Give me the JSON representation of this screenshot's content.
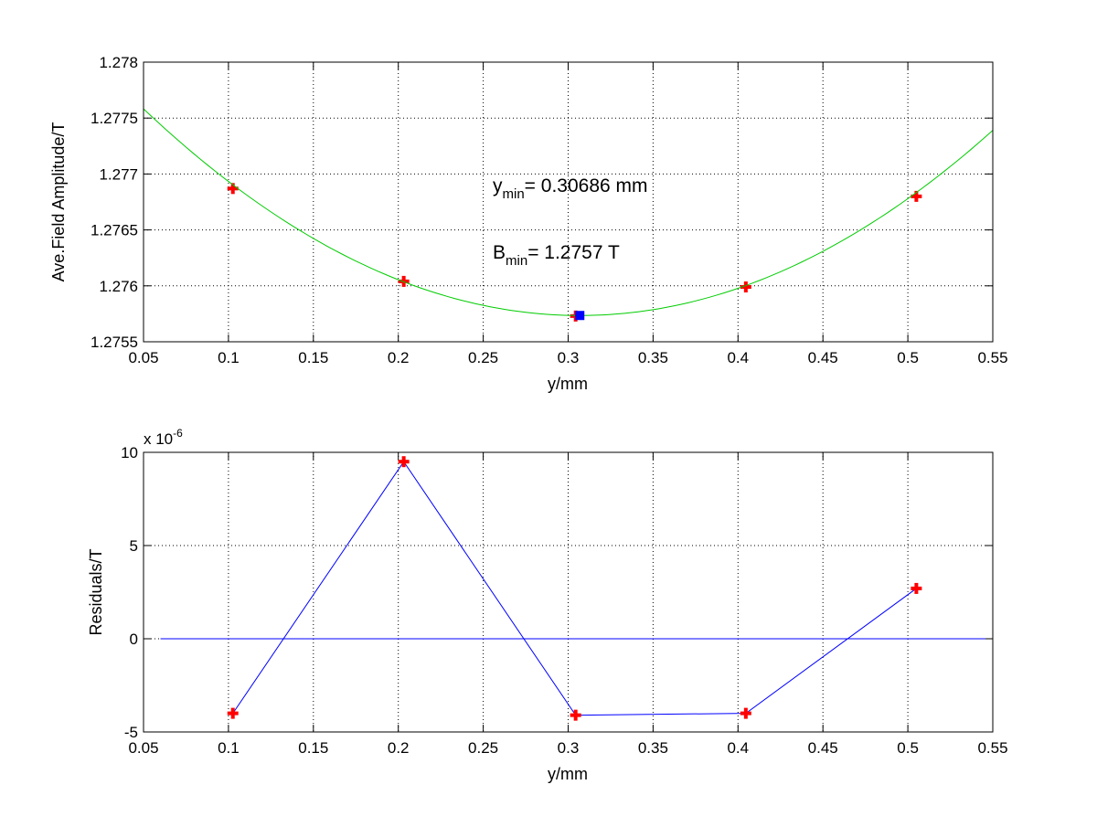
{
  "chart_data": [
    {
      "type": "scatter",
      "xlabel": "y/mm",
      "ylabel": "Ave.Field Amplitude/T",
      "xlim": [
        0.05,
        0.55
      ],
      "ylim": [
        1.2755,
        1.278
      ],
      "xticks": [
        "0.05",
        "0.1",
        "0.15",
        "0.2",
        "0.25",
        "0.3",
        "0.35",
        "0.4",
        "0.45",
        "0.5",
        "0.55"
      ],
      "yticks": [
        "1.2755",
        "1.276",
        "1.2765",
        "1.277",
        "1.2775",
        "1.278"
      ],
      "grid": true,
      "series": [
        {
          "role": "measured points",
          "color": "#ff0000",
          "marker": "plus",
          "x": [
            0.1026,
            0.2032,
            0.3044,
            0.4046,
            0.505
          ],
          "y": [
            1.27687,
            1.27604,
            1.27573,
            1.27599,
            1.2768
          ]
        },
        {
          "role": "parabolic fit",
          "color": "#00cc00",
          "marker": "none",
          "fit": {
            "vertex_x": 0.30686,
            "vertex_y": 1.275735,
            "curvature": 0.028
          },
          "x_range": [
            0.05,
            0.55
          ]
        },
        {
          "role": "minimum",
          "color": "#0000ff",
          "marker": "square",
          "x": [
            0.30686
          ],
          "y": [
            1.275735
          ]
        }
      ],
      "annotations": [
        {
          "base": "y",
          "sub": "min",
          "text": "= 0.30686 mm"
        },
        {
          "base": "B",
          "sub": "min",
          "text": "= 1.2757 T"
        }
      ]
    },
    {
      "type": "line",
      "xlabel": "y/mm",
      "ylabel": "Residuals/T",
      "xlim": [
        0.05,
        0.55
      ],
      "ylim": [
        -5,
        10
      ],
      "scale_label": {
        "base": "x 10",
        "exp": "-6"
      },
      "xticks": [
        "0.05",
        "0.1",
        "0.15",
        "0.2",
        "0.25",
        "0.3",
        "0.35",
        "0.4",
        "0.45",
        "0.5",
        "0.55"
      ],
      "yticks": [
        "-5",
        "0",
        "5",
        "10"
      ],
      "grid": true,
      "series": [
        {
          "role": "residuals",
          "color": "#0000ff",
          "marker_color": "#ff0000",
          "marker": "plus",
          "x": [
            0.1026,
            0.2032,
            0.3044,
            0.4046,
            0.505
          ],
          "y": [
            -4.0,
            9.5,
            -4.1,
            -4.0,
            2.7
          ]
        },
        {
          "role": "zero line",
          "color": "#0000ff",
          "x": [
            0.06,
            0.55
          ],
          "y": [
            0,
            0
          ]
        }
      ]
    }
  ]
}
